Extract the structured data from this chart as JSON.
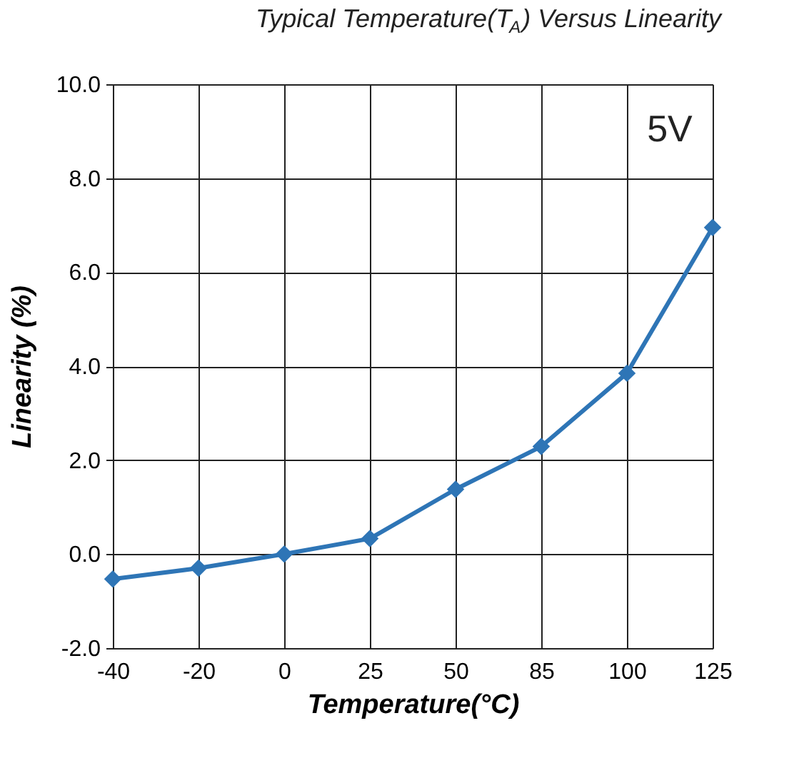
{
  "chart_data": {
    "type": "line",
    "title": "Typical Temperature(T$_{A}$) Versus Linearity",
    "xlabel": "Temperature(°C)",
    "ylabel": "Linearity (%)",
    "categories": [
      "-40",
      "-20",
      "0",
      "25",
      "50",
      "85",
      "100",
      "125"
    ],
    "series": [
      {
        "color": "#2e75b6",
        "values": [
          -0.53,
          -0.3,
          0.0,
          0.33,
          1.38,
          2.29,
          3.85,
          6.95
        ]
      }
    ],
    "ylim": [
      -2,
      10
    ],
    "yticks": [
      {
        "value": -2,
        "label": "-2.0"
      },
      {
        "value": 0,
        "label": "0.0"
      },
      {
        "value": 2,
        "label": "2.0"
      },
      {
        "value": 4,
        "label": "4.0"
      },
      {
        "value": 6,
        "label": "6.0"
      },
      {
        "value": 8,
        "label": "8.0"
      },
      {
        "value": 10,
        "label": "10.0"
      }
    ],
    "annotations": [
      "5V"
    ],
    "grid": true,
    "marker": "diamond",
    "line_style": "solid"
  }
}
